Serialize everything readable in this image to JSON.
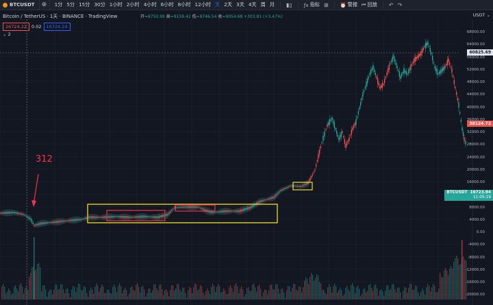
{
  "header": {
    "symbol": "BTCUSDT",
    "intervals": [
      "1分",
      "5分",
      "15分",
      "30分",
      "1小时",
      "2小时",
      "4小时",
      "6小时",
      "8小时",
      "12小时",
      "天",
      "2天",
      "3天",
      "4天",
      "周",
      "月"
    ],
    "active_interval": "天",
    "indicators_label": "指标",
    "alert_label": "警报",
    "replay_label": "回放"
  },
  "legend": {
    "title": "Bitcoin / TetherUS · 1天 · BINANCE · TradingView",
    "ohlc_open_label": "开",
    "ohlc_open": "=8750.99",
    "ohlc_high_label": "高",
    "ohlc_high": "=9159.42",
    "ohlc_low_label": "低",
    "ohlc_low": "=8746.54",
    "ohlc_close_label": "收",
    "ohlc_close": "=9054.68",
    "ohlc_change": "+303.81 (+3.47%)",
    "sell_price": "16724.22",
    "spread": "0.02",
    "buy_price": "16724.24",
    "collapse_label": "2"
  },
  "axis": {
    "currency": "USDT",
    "labels": [
      "68000.00",
      "64000.00",
      "56000.00",
      "52000.00",
      "48000.00",
      "44000.00",
      "40000.00",
      "36000.00",
      "32000.00",
      "28000.00",
      "24000.00",
      "20000.00",
      "16000.00",
      "12000.00",
      "8000.00",
      "4000.00",
      "0.00",
      "-4000.00",
      "-8000.00",
      "-12000.00",
      "-16000.00",
      "-20000.00"
    ],
    "crosshair_price": "60825.69",
    "current_low": "38124.72",
    "btc_tag_label": "BTCUSDT",
    "btc_tag_price": "16723.94",
    "btc_tag_time": "11:05:19"
  },
  "annotation": {
    "text": "312"
  },
  "colors": {
    "up": "#26a69a",
    "down": "#ef5350",
    "highlight_yellow": "#f7dc1e",
    "highlight_red": "#f23645",
    "background": "#131722"
  }
}
